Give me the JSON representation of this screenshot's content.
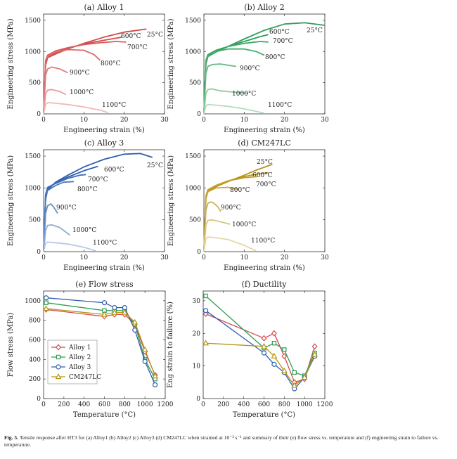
{
  "caption": {
    "label": "Fig. 5.",
    "text": "Tensile response after HT3 for (a) Alloy1 (b) Alloy2 (c) Alloy3 (d) CM247LC when strained at 10⁻³ s⁻¹ and summary of their (e) flow stress vs. temperature and (f) engineering strain to failure vs. temperature."
  },
  "chart_data": [
    {
      "id": "a",
      "type": "line",
      "title": "(a) Alloy 1",
      "xlabel": "Engineering strain (%)",
      "ylabel": "Engineering stress (MPa)",
      "xlim": [
        0,
        30
      ],
      "ylim": [
        0,
        1600
      ],
      "xticks": [
        0,
        10,
        20,
        30
      ],
      "yticks": [
        0,
        500,
        1000,
        1500
      ],
      "grid": false,
      "series": [
        {
          "name": "25°C",
          "color": "#d14b4b",
          "x": [
            0,
            0.5,
            1,
            3,
            6,
            10,
            15,
            20,
            25.5
          ],
          "y": [
            0,
            780,
            900,
            960,
            1040,
            1130,
            1230,
            1310,
            1360
          ]
        },
        {
          "name": "600°C",
          "color": "#d14b4b",
          "x": [
            0,
            0.5,
            1,
            3,
            6,
            10,
            15,
            19.5
          ],
          "y": [
            0,
            820,
            920,
            980,
            1050,
            1120,
            1180,
            1230
          ]
        },
        {
          "name": "700°C",
          "color": "#d95c5c",
          "x": [
            0,
            0.5,
            1,
            3,
            6,
            10,
            14,
            18,
            20.5
          ],
          "y": [
            0,
            860,
            940,
            1010,
            1060,
            1110,
            1140,
            1160,
            1150
          ]
        },
        {
          "name": "800°C",
          "color": "#dc6a6a",
          "x": [
            0,
            0.5,
            1,
            3,
            6,
            10,
            12.5,
            14
          ],
          "y": [
            0,
            840,
            920,
            990,
            1030,
            1020,
            950,
            860
          ]
        },
        {
          "name": "900°C",
          "color": "#e07c7c",
          "x": [
            0,
            0.5,
            1,
            2,
            4,
            6
          ],
          "y": [
            0,
            620,
            720,
            750,
            720,
            660
          ]
        },
        {
          "name": "1000°C",
          "color": "#e89a9a",
          "x": [
            0,
            0.5,
            1,
            2,
            4,
            5.5
          ],
          "y": [
            0,
            320,
            380,
            390,
            360,
            310
          ]
        },
        {
          "name": "1100°C",
          "color": "#f0b8b8",
          "x": [
            0,
            0.5,
            1,
            3,
            6,
            10,
            14,
            16
          ],
          "y": [
            0,
            150,
            180,
            170,
            150,
            110,
            60,
            20
          ]
        }
      ]
    },
    {
      "id": "b",
      "type": "line",
      "title": "(b) Alloy 2",
      "xlabel": "Engineering strain (%)",
      "ylabel": "Engineering stress (MPa)",
      "xlim": [
        0,
        30
      ],
      "ylim": [
        0,
        1600
      ],
      "xticks": [
        0,
        10,
        20,
        30
      ],
      "yticks": [
        0,
        500,
        1000,
        1500
      ],
      "grid": false,
      "series": [
        {
          "name": "25°C",
          "color": "#2e9e58",
          "x": [
            0,
            0.5,
            1,
            3,
            6,
            10,
            15,
            20,
            25,
            30
          ],
          "y": [
            0,
            800,
            920,
            990,
            1080,
            1200,
            1340,
            1440,
            1460,
            1420
          ]
        },
        {
          "name": "600°C",
          "color": "#2e9e58",
          "x": [
            0,
            0.5,
            1,
            3,
            6,
            10,
            14,
            16
          ],
          "y": [
            0,
            830,
            930,
            1000,
            1080,
            1160,
            1240,
            1270
          ]
        },
        {
          "name": "700°C",
          "color": "#3aa763",
          "x": [
            0,
            0.5,
            1,
            3,
            6,
            10,
            14,
            16
          ],
          "y": [
            0,
            860,
            950,
            1020,
            1080,
            1130,
            1160,
            1150
          ]
        },
        {
          "name": "800°C",
          "color": "#47ad6d",
          "x": [
            0,
            0.5,
            1,
            3,
            6,
            10,
            13,
            15
          ],
          "y": [
            0,
            850,
            930,
            1000,
            1040,
            1040,
            1000,
            940
          ]
        },
        {
          "name": "900°C",
          "color": "#63bb83",
          "x": [
            0,
            0.5,
            1,
            2,
            4,
            6,
            8
          ],
          "y": [
            0,
            650,
            760,
            790,
            800,
            780,
            760
          ]
        },
        {
          "name": "1000°C",
          "color": "#8ccd9f",
          "x": [
            0,
            0.5,
            1,
            2,
            4,
            7,
            11
          ],
          "y": [
            0,
            330,
            390,
            400,
            370,
            350,
            330
          ]
        },
        {
          "name": "1100°C",
          "color": "#b3ddbf",
          "x": [
            0,
            0.5,
            1,
            3,
            6,
            10,
            13,
            15
          ],
          "y": [
            0,
            130,
            150,
            140,
            120,
            80,
            40,
            10
          ]
        }
      ]
    },
    {
      "id": "c",
      "type": "line",
      "title": "(c) Alloy 3",
      "xlabel": "Engineering strain (%)",
      "ylabel": "Engineering stress (MPa)",
      "xlim": [
        0,
        30
      ],
      "ylim": [
        0,
        1600
      ],
      "xticks": [
        0,
        10,
        20,
        30
      ],
      "yticks": [
        0,
        500,
        1000,
        1500
      ],
      "grid": false,
      "series": [
        {
          "name": "25°C",
          "color": "#2f5fae",
          "x": [
            0,
            0.5,
            1,
            3,
            6,
            10,
            15,
            20,
            24,
            27
          ],
          "y": [
            0,
            820,
            970,
            1090,
            1200,
            1330,
            1450,
            1530,
            1540,
            1480
          ]
        },
        {
          "name": "600°C",
          "color": "#2f5fae",
          "x": [
            0,
            0.5,
            1,
            3,
            6,
            10,
            13.5
          ],
          "y": [
            0,
            880,
            1000,
            1080,
            1170,
            1270,
            1340
          ]
        },
        {
          "name": "700°C",
          "color": "#3f6db6",
          "x": [
            0,
            0.5,
            1,
            3,
            6,
            9,
            10.5
          ],
          "y": [
            0,
            900,
            1010,
            1070,
            1150,
            1200,
            1210
          ]
        },
        {
          "name": "800°C",
          "color": "#4c79bd",
          "x": [
            0,
            0.5,
            1,
            3,
            5,
            7.5
          ],
          "y": [
            0,
            870,
            960,
            1040,
            1090,
            1100
          ]
        },
        {
          "name": "900°C",
          "color": "#6b90c8",
          "x": [
            0,
            0.5,
            1,
            1.8,
            2.5,
            3.5
          ],
          "y": [
            0,
            600,
            720,
            750,
            700,
            600
          ]
        },
        {
          "name": "1000°C",
          "color": "#90acd6",
          "x": [
            0,
            0.5,
            1,
            2,
            4,
            6.5
          ],
          "y": [
            0,
            330,
            410,
            420,
            380,
            260
          ]
        },
        {
          "name": "1100°C",
          "color": "#b6c8e6",
          "x": [
            0,
            0.5,
            1,
            3,
            6,
            10,
            13
          ],
          "y": [
            0,
            130,
            150,
            140,
            120,
            70,
            10
          ]
        }
      ]
    },
    {
      "id": "d",
      "type": "line",
      "title": "(d) CM247LC",
      "xlabel": "Engineering strain (%)",
      "ylabel": "Engineering stress (MPa)",
      "xlim": [
        0,
        30
      ],
      "ylim": [
        0,
        1600
      ],
      "xticks": [
        0,
        10,
        20,
        30
      ],
      "yticks": [
        0,
        500,
        1000,
        1500
      ],
      "grid": false,
      "series": [
        {
          "name": "25°C",
          "color": "#b89418",
          "x": [
            0,
            0.5,
            1,
            3,
            6,
            10,
            13,
            17
          ],
          "y": [
            0,
            830,
            940,
            1020,
            1100,
            1200,
            1280,
            1370
          ]
        },
        {
          "name": "600°C",
          "color": "#b89418",
          "x": [
            0,
            0.5,
            1,
            3,
            6,
            10,
            13.5,
            16
          ],
          "y": [
            0,
            860,
            960,
            1040,
            1110,
            1180,
            1220,
            1240
          ]
        },
        {
          "name": "700°C",
          "color": "#c09f2a",
          "x": [
            0,
            0.5,
            1,
            3,
            6,
            10,
            13.5
          ],
          "y": [
            0,
            880,
            970,
            1040,
            1110,
            1160,
            1180
          ]
        },
        {
          "name": "800°C",
          "color": "#c5a73a",
          "x": [
            0,
            0.5,
            1,
            3,
            6,
            8.5
          ],
          "y": [
            0,
            850,
            940,
            1000,
            1010,
            980
          ]
        },
        {
          "name": "900°C",
          "color": "#cdb256",
          "x": [
            0,
            0.5,
            1,
            1.8,
            2.5,
            3.5,
            4.2
          ],
          "y": [
            0,
            650,
            760,
            780,
            760,
            700,
            630
          ]
        },
        {
          "name": "1000°C",
          "color": "#d8c37d",
          "x": [
            0,
            0.5,
            1,
            2,
            4,
            6.5
          ],
          "y": [
            0,
            420,
            490,
            500,
            470,
            430
          ]
        },
        {
          "name": "1100°C",
          "color": "#e6d7a7",
          "x": [
            0,
            0.5,
            1,
            3,
            6,
            10,
            13
          ],
          "y": [
            0,
            200,
            230,
            220,
            190,
            100,
            10
          ]
        }
      ]
    },
    {
      "id": "e",
      "type": "line",
      "title": "(e) Flow stress",
      "xlabel": "Temperature (°C)",
      "ylabel": "Flow stress (MPa)",
      "xlim": [
        0,
        1200
      ],
      "ylim": [
        0,
        1100
      ],
      "xticks": [
        0,
        200,
        400,
        600,
        800,
        1000,
        1200
      ],
      "yticks": [
        0,
        200,
        400,
        600,
        800,
        1000
      ],
      "grid": false,
      "legend": "bottom-left",
      "series": [
        {
          "name": "Alloy 1",
          "color": "#d14b4b",
          "marker": "diamond",
          "x": [
            25,
            600,
            700,
            800,
            900,
            1000,
            1100
          ],
          "y": [
            910,
            840,
            860,
            860,
            760,
            480,
            240
          ]
        },
        {
          "name": "Alloy 2",
          "color": "#2e9e58",
          "marker": "square",
          "x": [
            25,
            600,
            700,
            800,
            900,
            1000,
            1100
          ],
          "y": [
            980,
            900,
            900,
            900,
            760,
            400,
            200
          ]
        },
        {
          "name": "Alloy 3",
          "color": "#2f5fae",
          "marker": "circle",
          "x": [
            25,
            600,
            700,
            800,
            900,
            1000,
            1100
          ],
          "y": [
            1030,
            980,
            930,
            930,
            700,
            380,
            140
          ]
        },
        {
          "name": "CM247LC",
          "color": "#b89418",
          "marker": "triangle",
          "x": [
            25,
            600,
            700,
            800,
            900,
            1000,
            1100
          ],
          "y": [
            920,
            860,
            880,
            880,
            780,
            500,
            230
          ]
        }
      ]
    },
    {
      "id": "f",
      "type": "line",
      "title": "(f) Ductility",
      "xlabel": "Temperature (°C)",
      "ylabel": "Eng strain to failure (%)",
      "xlim": [
        0,
        1200
      ],
      "ylim": [
        0,
        33
      ],
      "xticks": [
        0,
        200,
        400,
        600,
        800,
        1000,
        1200
      ],
      "yticks": [
        0,
        10,
        20,
        30
      ],
      "grid": false,
      "series": [
        {
          "name": "Alloy 1",
          "color": "#d14b4b",
          "marker": "diamond",
          "x": [
            25,
            600,
            700,
            800,
            900,
            1000,
            1100
          ],
          "y": [
            26,
            18.5,
            20,
            13,
            5,
            6,
            16
          ]
        },
        {
          "name": "Alloy 2",
          "color": "#2e9e58",
          "marker": "square",
          "x": [
            25,
            600,
            700,
            800,
            900,
            1000,
            1100
          ],
          "y": [
            31.5,
            15.5,
            17,
            15,
            8,
            7,
            14
          ]
        },
        {
          "name": "Alloy 3",
          "color": "#2f5fae",
          "marker": "circle",
          "x": [
            25,
            600,
            700,
            800,
            900,
            1000,
            1100
          ],
          "y": [
            27,
            14,
            10.5,
            8,
            3,
            6.5,
            13
          ]
        },
        {
          "name": "CM247LC",
          "color": "#b89418",
          "marker": "triangle",
          "x": [
            25,
            600,
            700,
            800,
            900,
            1000,
            1100
          ],
          "y": [
            17,
            16,
            13,
            8.5,
            4,
            6.5,
            13.5
          ]
        }
      ]
    }
  ]
}
